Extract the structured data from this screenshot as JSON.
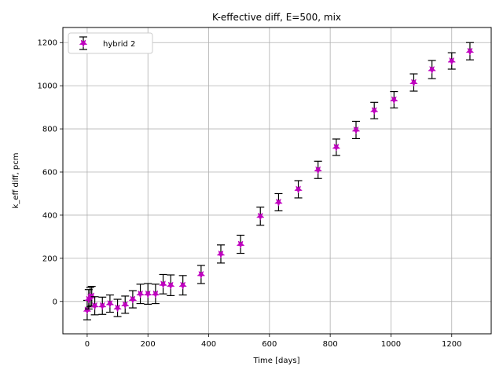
{
  "chart_data": {
    "type": "scatter",
    "title": "K-effective diff, E=500, mix",
    "xlabel": "Time [days]",
    "ylabel": "k_eff diff, pcm",
    "xlim": [
      -80,
      1330
    ],
    "ylim": [
      -150,
      1270
    ],
    "xticks": [
      0,
      200,
      400,
      600,
      800,
      1000,
      1200
    ],
    "yticks": [
      0,
      200,
      400,
      600,
      800,
      1000,
      1200
    ],
    "grid": true,
    "legend_position": "top-left",
    "series": [
      {
        "name": "hybrid 2",
        "marker": "star",
        "color": "#bf00bf",
        "errorbar_color": "#000000",
        "x": [
          0,
          5,
          10,
          15,
          25,
          50,
          75,
          100,
          125,
          150,
          175,
          200,
          225,
          250,
          275,
          315,
          375,
          440,
          505,
          570,
          630,
          695,
          760,
          820,
          885,
          945,
          1010,
          1075,
          1135,
          1200,
          1260
        ],
        "y": [
          -40,
          10,
          20,
          25,
          -20,
          -20,
          -10,
          -30,
          -15,
          10,
          35,
          35,
          35,
          80,
          75,
          75,
          125,
          220,
          265,
          395,
          460,
          520,
          610,
          715,
          795,
          885,
          935,
          1015,
          1075,
          1115,
          1160
        ],
        "yerr": [
          45,
          45,
          45,
          45,
          42,
          40,
          40,
          40,
          40,
          40,
          45,
          48,
          45,
          45,
          48,
          45,
          42,
          42,
          42,
          42,
          40,
          40,
          40,
          38,
          40,
          38,
          38,
          40,
          42,
          38,
          40
        ]
      }
    ]
  }
}
